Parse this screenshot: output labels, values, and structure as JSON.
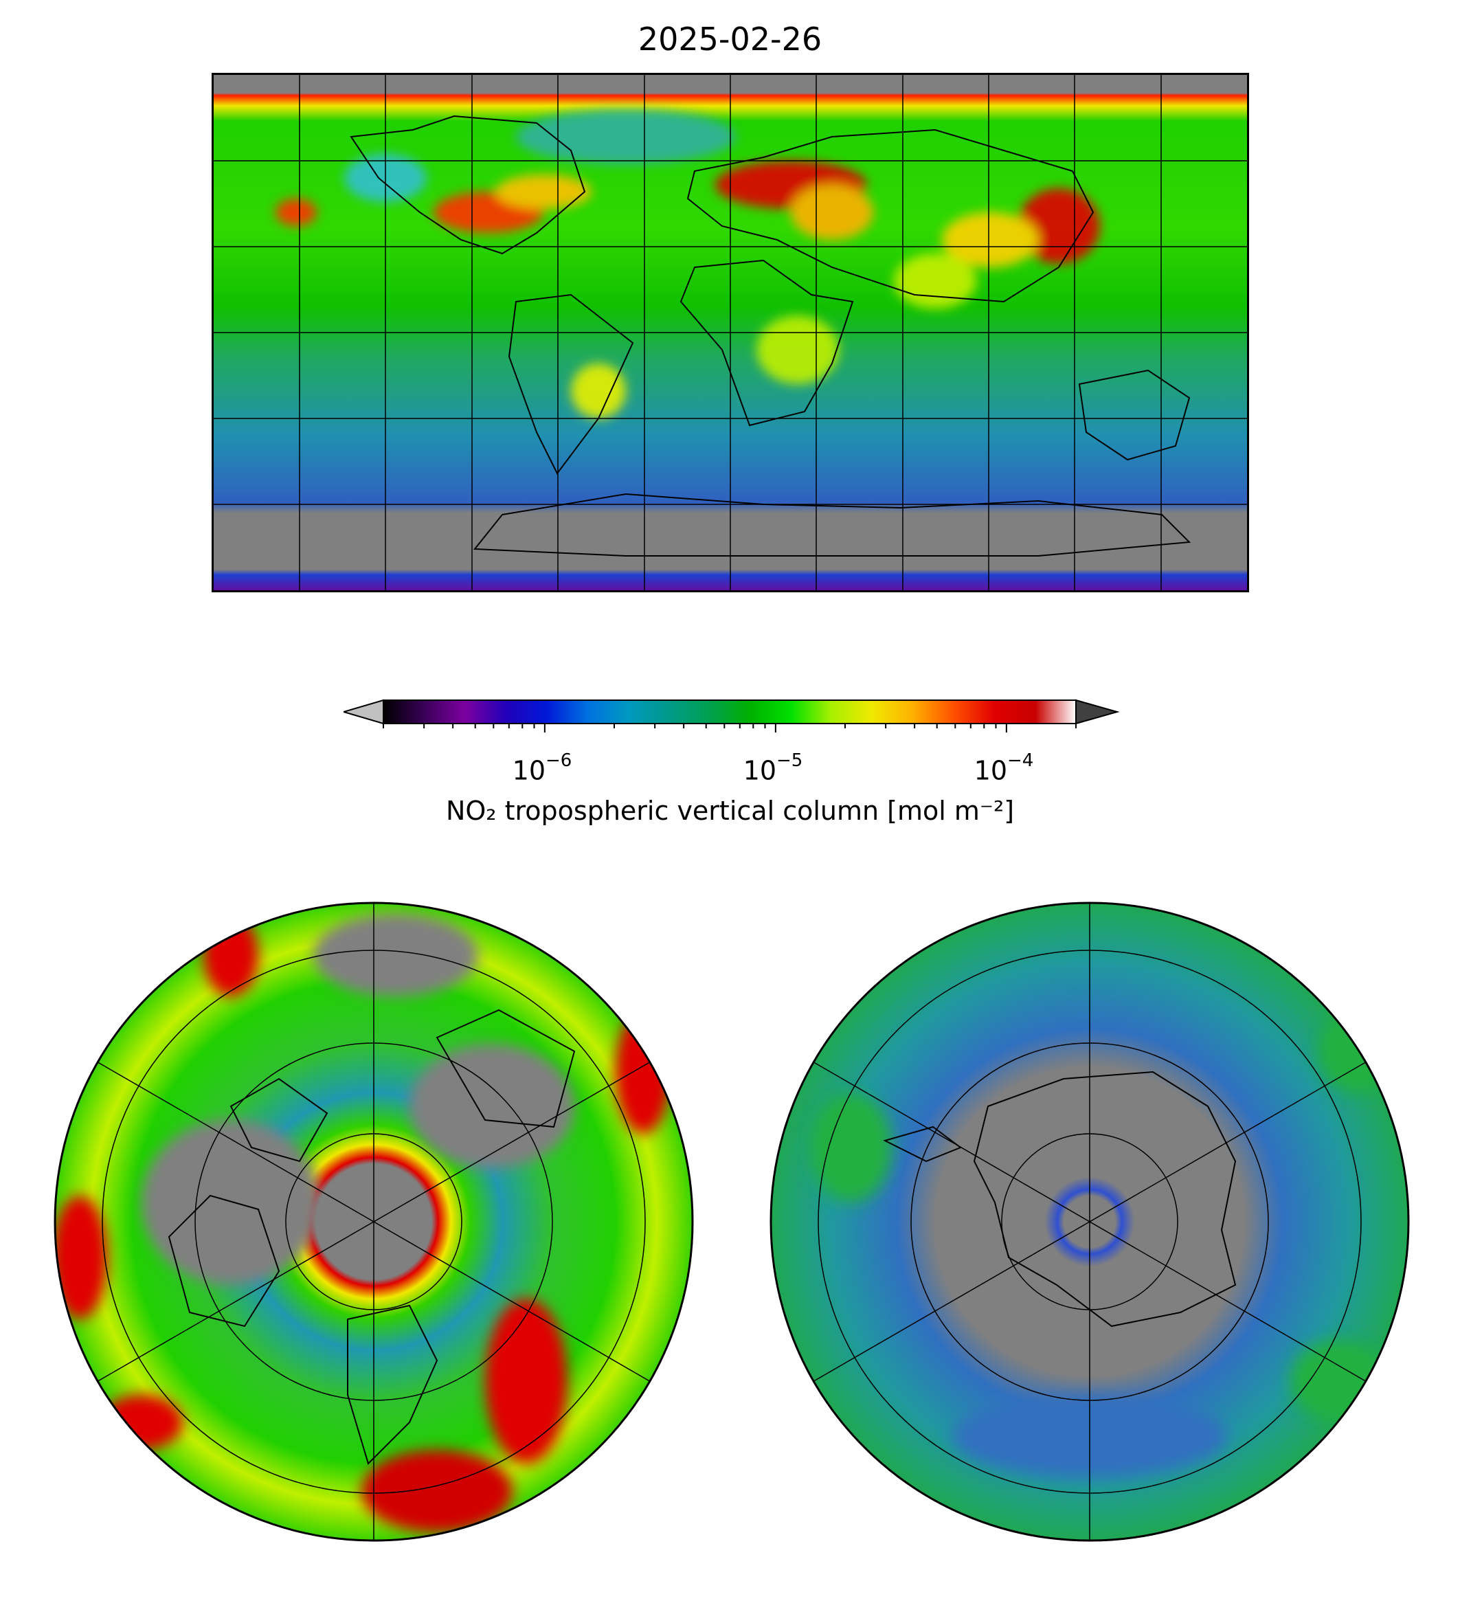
{
  "figure": {
    "title": "2025-02-26"
  },
  "colorbar": {
    "label": "NO₂ tropospheric vertical column [mol m⁻²]",
    "scale": "log",
    "ticks": [
      {
        "base": "10",
        "exp": "−6",
        "value": 1e-06
      },
      {
        "base": "10",
        "exp": "−5",
        "value": 1e-05
      },
      {
        "base": "10",
        "exp": "−4",
        "value": 0.0001
      }
    ],
    "range": [
      2e-07,
      0.0002
    ],
    "extend": "both",
    "colors": [
      "#000000",
      "#3a0058",
      "#7c00a0",
      "#2200b8",
      "#0018d8",
      "#0070e0",
      "#0098c0",
      "#009a8a",
      "#00a050",
      "#00b000",
      "#00e000",
      "#a8f000",
      "#f0e800",
      "#ffb000",
      "#ff5000",
      "#e00000",
      "#c80000",
      "#ffffff"
    ],
    "under_color": "#c0c0c0",
    "over_color": "#404040"
  },
  "maps": {
    "global": {
      "projection": "plate-carree",
      "nodata_color": "#808080"
    },
    "north": {
      "projection": "north-polar-stereographic"
    },
    "south": {
      "projection": "south-polar-stereographic"
    }
  }
}
